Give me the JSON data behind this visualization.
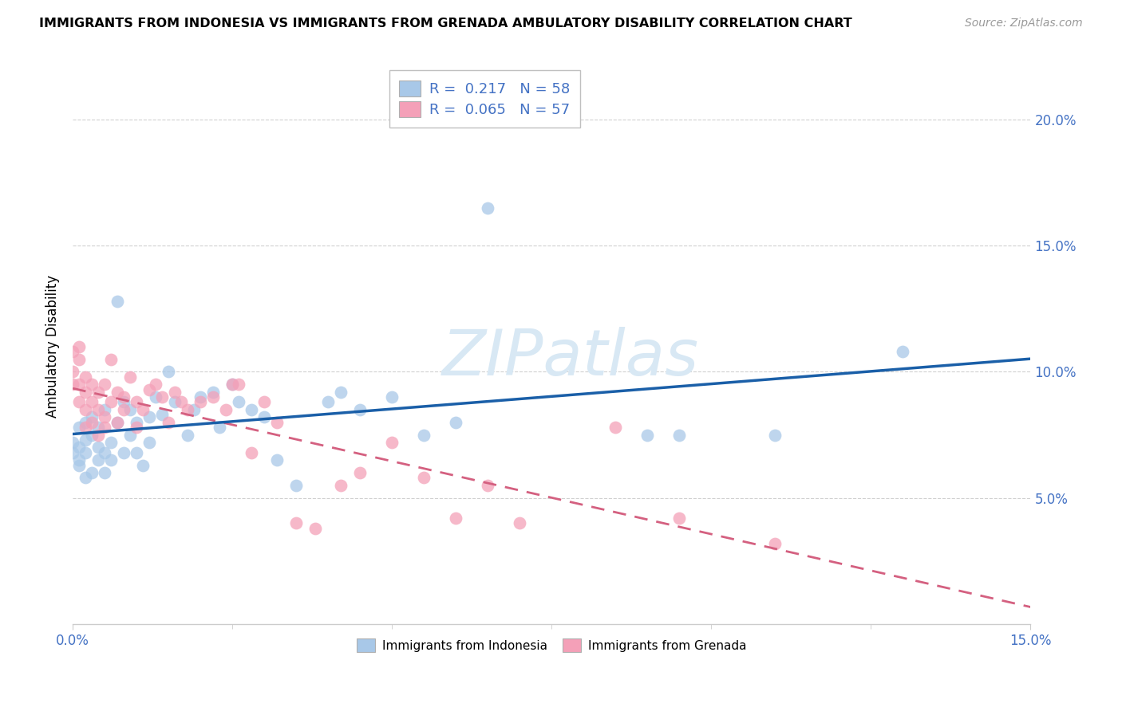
{
  "title": "IMMIGRANTS FROM INDONESIA VS IMMIGRANTS FROM GRENADA AMBULATORY DISABILITY CORRELATION CHART",
  "source": "Source: ZipAtlas.com",
  "ylabel": "Ambulatory Disability",
  "r_indonesia": 0.217,
  "n_indonesia": 58,
  "r_grenada": 0.065,
  "n_grenada": 57,
  "color_indonesia": "#a8c8e8",
  "color_grenada": "#f4a0b8",
  "line_color_indonesia": "#1a5fa8",
  "line_color_grenada": "#d46080",
  "xlim": [
    0.0,
    0.15
  ],
  "ylim": [
    0.0,
    0.22
  ],
  "ytick_positions": [
    0.05,
    0.1,
    0.15,
    0.2
  ],
  "ytick_labels": [
    "5.0%",
    "10.0%",
    "15.0%",
    "20.0%"
  ],
  "xtick_show": [
    0.0,
    0.15
  ],
  "xtick_labels": [
    "0.0%",
    "15.0%"
  ],
  "indonesia_x": [
    0.0,
    0.0,
    0.001,
    0.001,
    0.001,
    0.001,
    0.002,
    0.002,
    0.002,
    0.002,
    0.003,
    0.003,
    0.003,
    0.004,
    0.004,
    0.004,
    0.005,
    0.005,
    0.005,
    0.006,
    0.006,
    0.007,
    0.007,
    0.008,
    0.008,
    0.009,
    0.009,
    0.01,
    0.01,
    0.011,
    0.012,
    0.012,
    0.013,
    0.014,
    0.015,
    0.016,
    0.018,
    0.019,
    0.02,
    0.022,
    0.023,
    0.025,
    0.026,
    0.028,
    0.03,
    0.032,
    0.035,
    0.04,
    0.042,
    0.045,
    0.05,
    0.055,
    0.06,
    0.065,
    0.09,
    0.095,
    0.11,
    0.13
  ],
  "indonesia_y": [
    0.068,
    0.072,
    0.063,
    0.07,
    0.078,
    0.065,
    0.08,
    0.058,
    0.073,
    0.068,
    0.075,
    0.06,
    0.082,
    0.065,
    0.07,
    0.078,
    0.085,
    0.06,
    0.068,
    0.072,
    0.065,
    0.08,
    0.128,
    0.068,
    0.088,
    0.075,
    0.085,
    0.068,
    0.08,
    0.063,
    0.082,
    0.072,
    0.09,
    0.083,
    0.1,
    0.088,
    0.075,
    0.085,
    0.09,
    0.092,
    0.078,
    0.095,
    0.088,
    0.085,
    0.082,
    0.065,
    0.055,
    0.088,
    0.092,
    0.085,
    0.09,
    0.075,
    0.08,
    0.165,
    0.075,
    0.075,
    0.075,
    0.108
  ],
  "grenada_x": [
    0.0,
    0.0,
    0.0,
    0.001,
    0.001,
    0.001,
    0.001,
    0.002,
    0.002,
    0.002,
    0.002,
    0.003,
    0.003,
    0.003,
    0.004,
    0.004,
    0.004,
    0.005,
    0.005,
    0.005,
    0.006,
    0.006,
    0.007,
    0.007,
    0.008,
    0.008,
    0.009,
    0.01,
    0.01,
    0.011,
    0.012,
    0.013,
    0.014,
    0.015,
    0.016,
    0.017,
    0.018,
    0.02,
    0.022,
    0.024,
    0.025,
    0.026,
    0.028,
    0.03,
    0.032,
    0.035,
    0.038,
    0.042,
    0.045,
    0.05,
    0.055,
    0.06,
    0.065,
    0.07,
    0.085,
    0.095,
    0.11
  ],
  "grenada_y": [
    0.1,
    0.095,
    0.108,
    0.105,
    0.095,
    0.088,
    0.11,
    0.092,
    0.085,
    0.098,
    0.078,
    0.095,
    0.08,
    0.088,
    0.092,
    0.075,
    0.085,
    0.095,
    0.082,
    0.078,
    0.105,
    0.088,
    0.092,
    0.08,
    0.09,
    0.085,
    0.098,
    0.088,
    0.078,
    0.085,
    0.093,
    0.095,
    0.09,
    0.08,
    0.092,
    0.088,
    0.085,
    0.088,
    0.09,
    0.085,
    0.095,
    0.095,
    0.068,
    0.088,
    0.08,
    0.04,
    0.038,
    0.055,
    0.06,
    0.072,
    0.058,
    0.042,
    0.055,
    0.04,
    0.078,
    0.042,
    0.032
  ],
  "watermark": "ZIPatlas",
  "watermark_color": "#d8e8f4",
  "legend1_labels": [
    "R =  0.217   N = 58",
    "R =  0.065   N = 57"
  ],
  "legend2_labels": [
    "Immigrants from Indonesia",
    "Immigrants from Grenada"
  ],
  "tick_color": "#4472c4",
  "grid_color": "#d0d0d0",
  "spine_color": "#cccccc"
}
